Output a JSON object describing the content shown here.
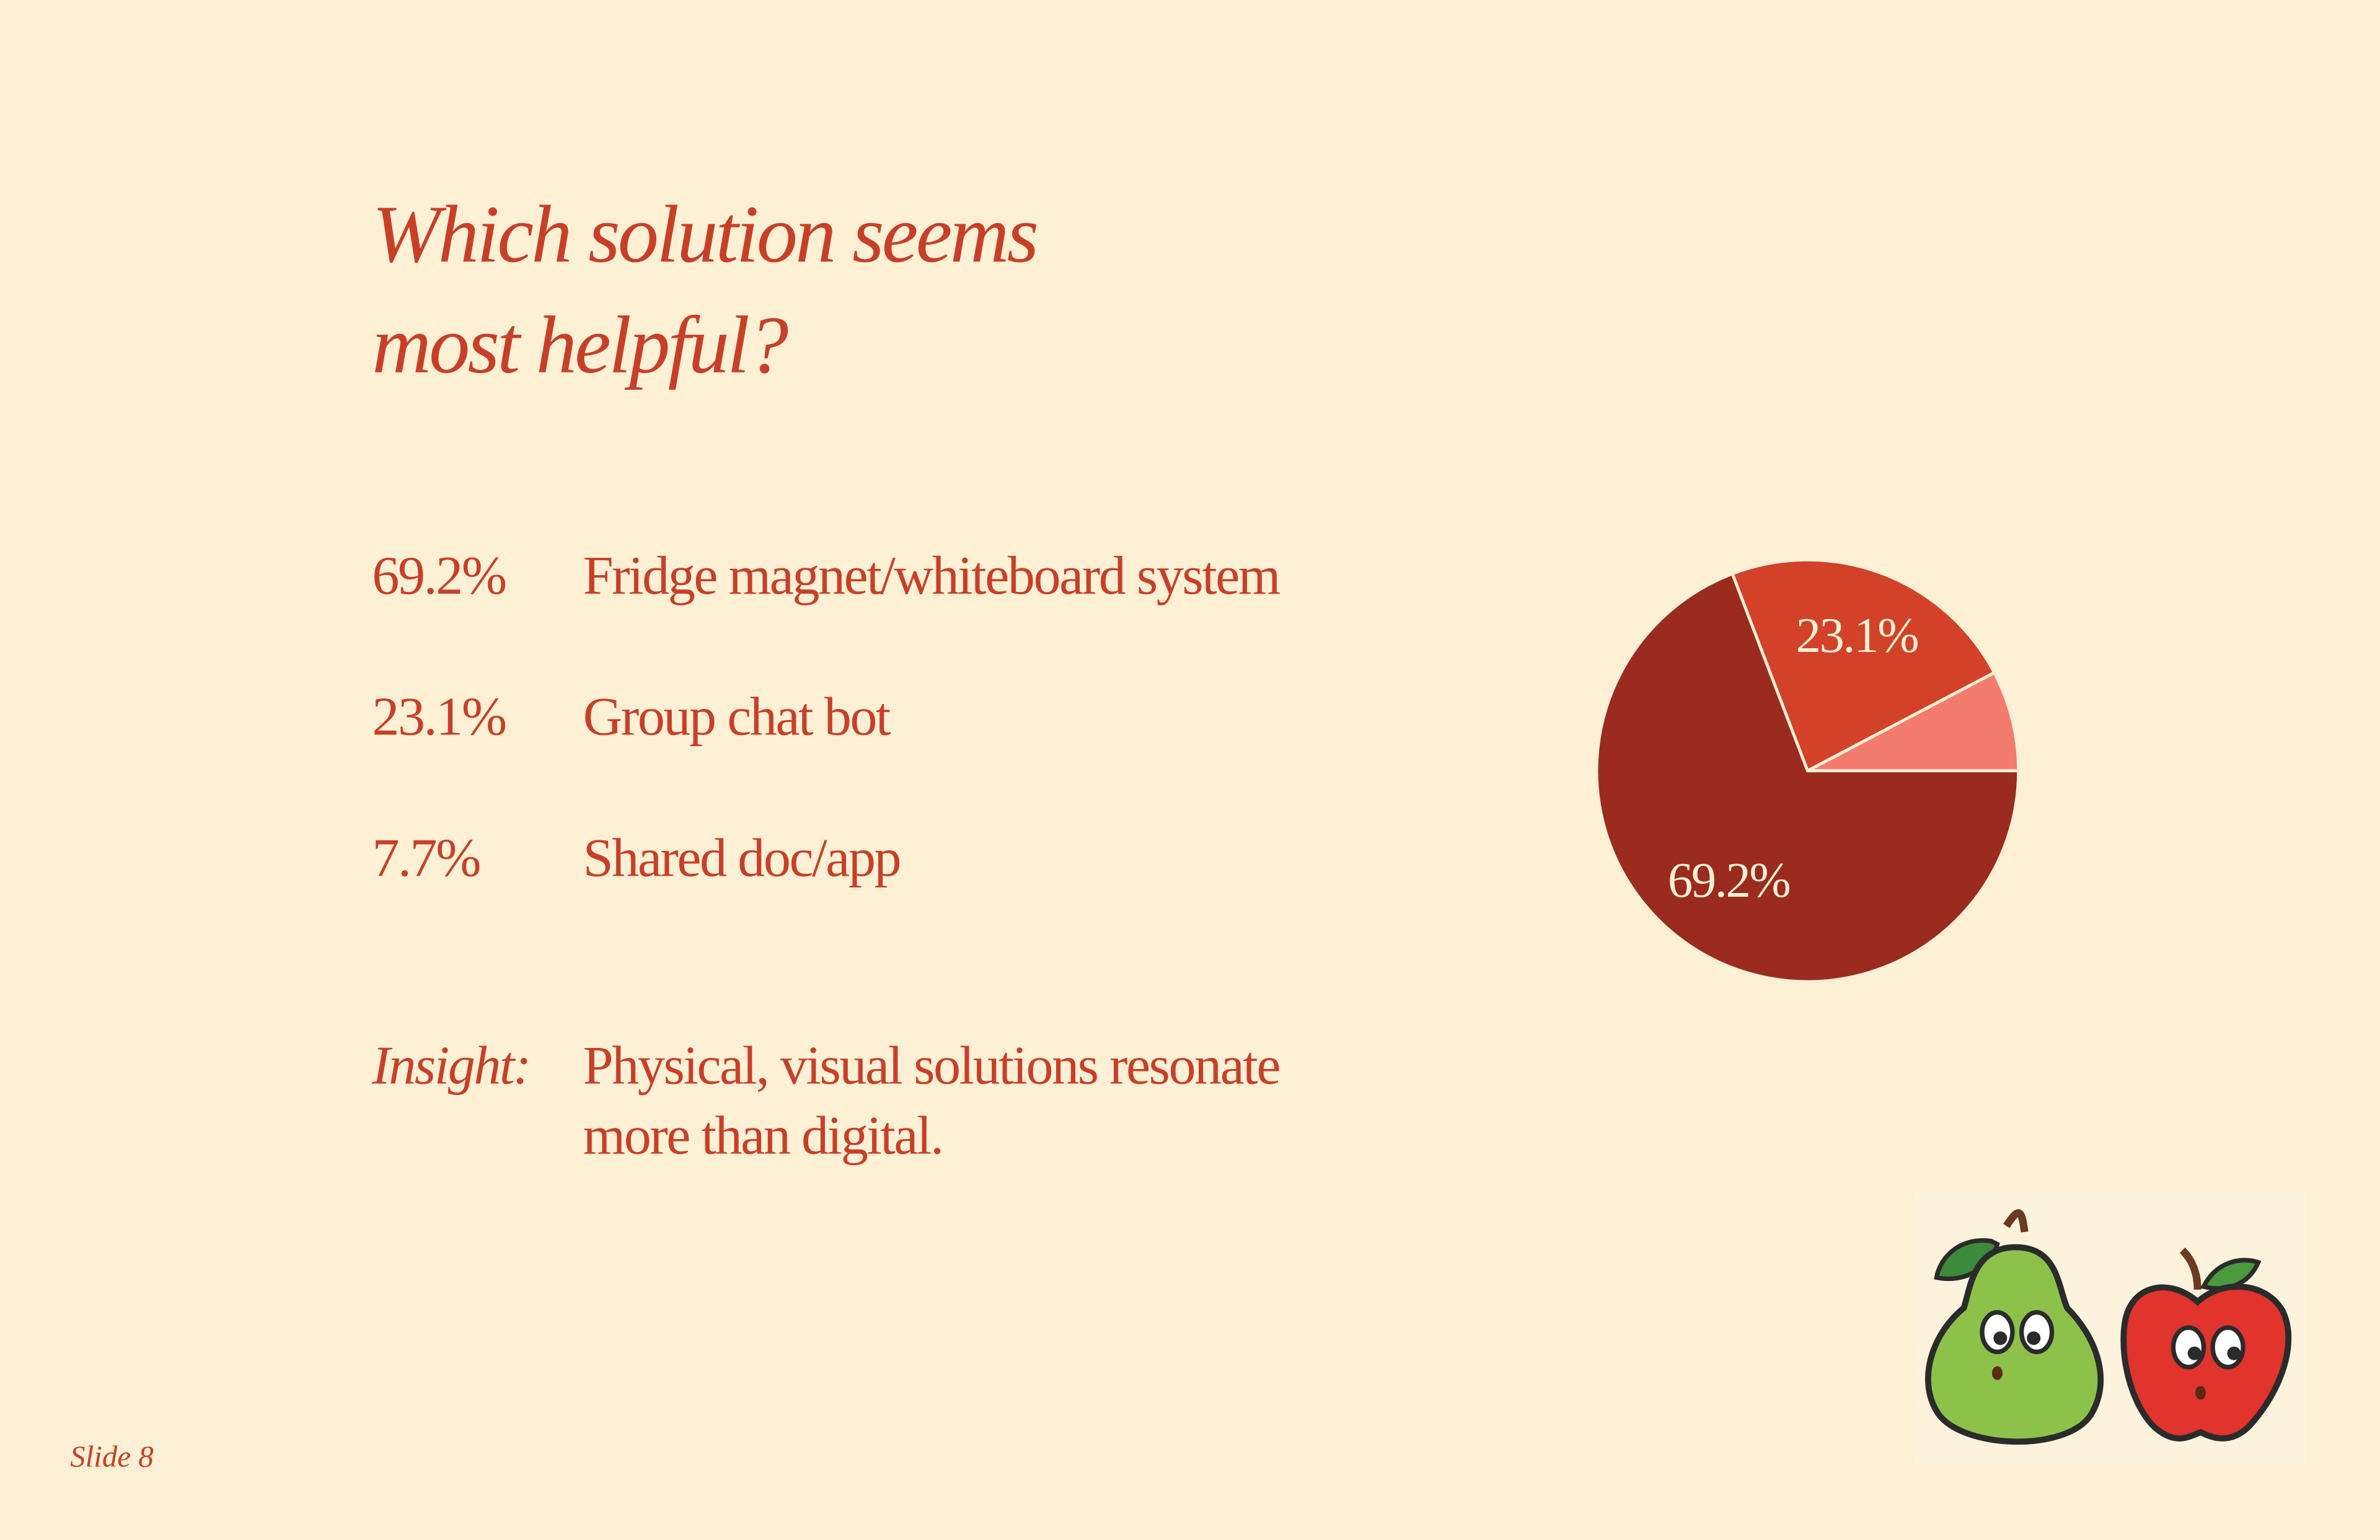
{
  "heading": [
    "Which solution seems",
    "most helpful?"
  ],
  "chart_data": {
    "type": "pie",
    "categories": [
      "Fridge magnet/whiteboard system",
      "Group chat bot",
      "Shared doc/app"
    ],
    "values": [
      69.2,
      23.1,
      7.7
    ],
    "value_labels": [
      "69.2%",
      "23.1%",
      "7.7%"
    ],
    "colors": [
      "#9a2b1e",
      "#d24128",
      "#f47c6e"
    ]
  },
  "insight": {
    "label": "Insight:",
    "lines": [
      "Physical, visual solutions resonate",
      "more than digital."
    ]
  },
  "footer": "Slide 8"
}
